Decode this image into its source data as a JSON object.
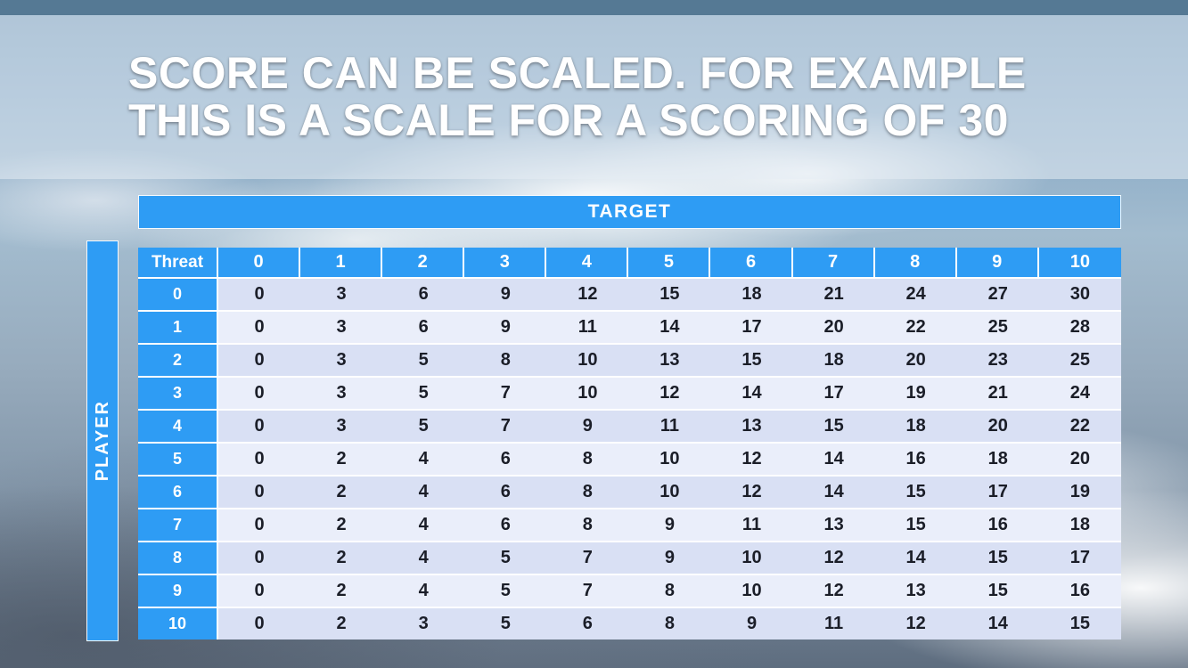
{
  "slide": {
    "title_line1": "SCORE CAN BE SCALED. FOR EXAMPLE",
    "title_line2": "THIS IS A SCALE FOR A SCORING OF 30"
  },
  "chart_data": {
    "type": "table",
    "title": "SCORE CAN BE SCALED. FOR EXAMPLE THIS IS A SCALE FOR A SCORING OF 30",
    "x_axis_label": "TARGET",
    "y_axis_label": "PLAYER",
    "corner_header": "Threat",
    "column_headers": [
      "0",
      "1",
      "2",
      "3",
      "4",
      "5",
      "6",
      "7",
      "8",
      "9",
      "10"
    ],
    "row_headers": [
      "0",
      "1",
      "2",
      "3",
      "4",
      "5",
      "6",
      "7",
      "8",
      "9",
      "10"
    ],
    "values": [
      [
        0,
        3,
        6,
        9,
        12,
        15,
        18,
        21,
        24,
        27,
        30
      ],
      [
        0,
        3,
        6,
        9,
        11,
        14,
        17,
        20,
        22,
        25,
        28
      ],
      [
        0,
        3,
        5,
        8,
        10,
        13,
        15,
        18,
        20,
        23,
        25
      ],
      [
        0,
        3,
        5,
        7,
        10,
        12,
        14,
        17,
        19,
        21,
        24
      ],
      [
        0,
        3,
        5,
        7,
        9,
        11,
        13,
        15,
        18,
        20,
        22
      ],
      [
        0,
        2,
        4,
        6,
        8,
        10,
        12,
        14,
        16,
        18,
        20
      ],
      [
        0,
        2,
        4,
        6,
        8,
        10,
        12,
        14,
        15,
        17,
        19
      ],
      [
        0,
        2,
        4,
        6,
        8,
        9,
        11,
        13,
        15,
        16,
        18
      ],
      [
        0,
        2,
        4,
        5,
        7,
        9,
        10,
        12,
        14,
        15,
        17
      ],
      [
        0,
        2,
        4,
        5,
        7,
        8,
        10,
        12,
        13,
        15,
        16
      ],
      [
        0,
        2,
        3,
        5,
        6,
        8,
        9,
        11,
        12,
        14,
        15
      ]
    ]
  },
  "colors": {
    "accent_blue": "#2E9CF4",
    "band_dark": "#D9E0F4",
    "band_light": "#EAEEFA",
    "value_text": "#1B1E28"
  }
}
